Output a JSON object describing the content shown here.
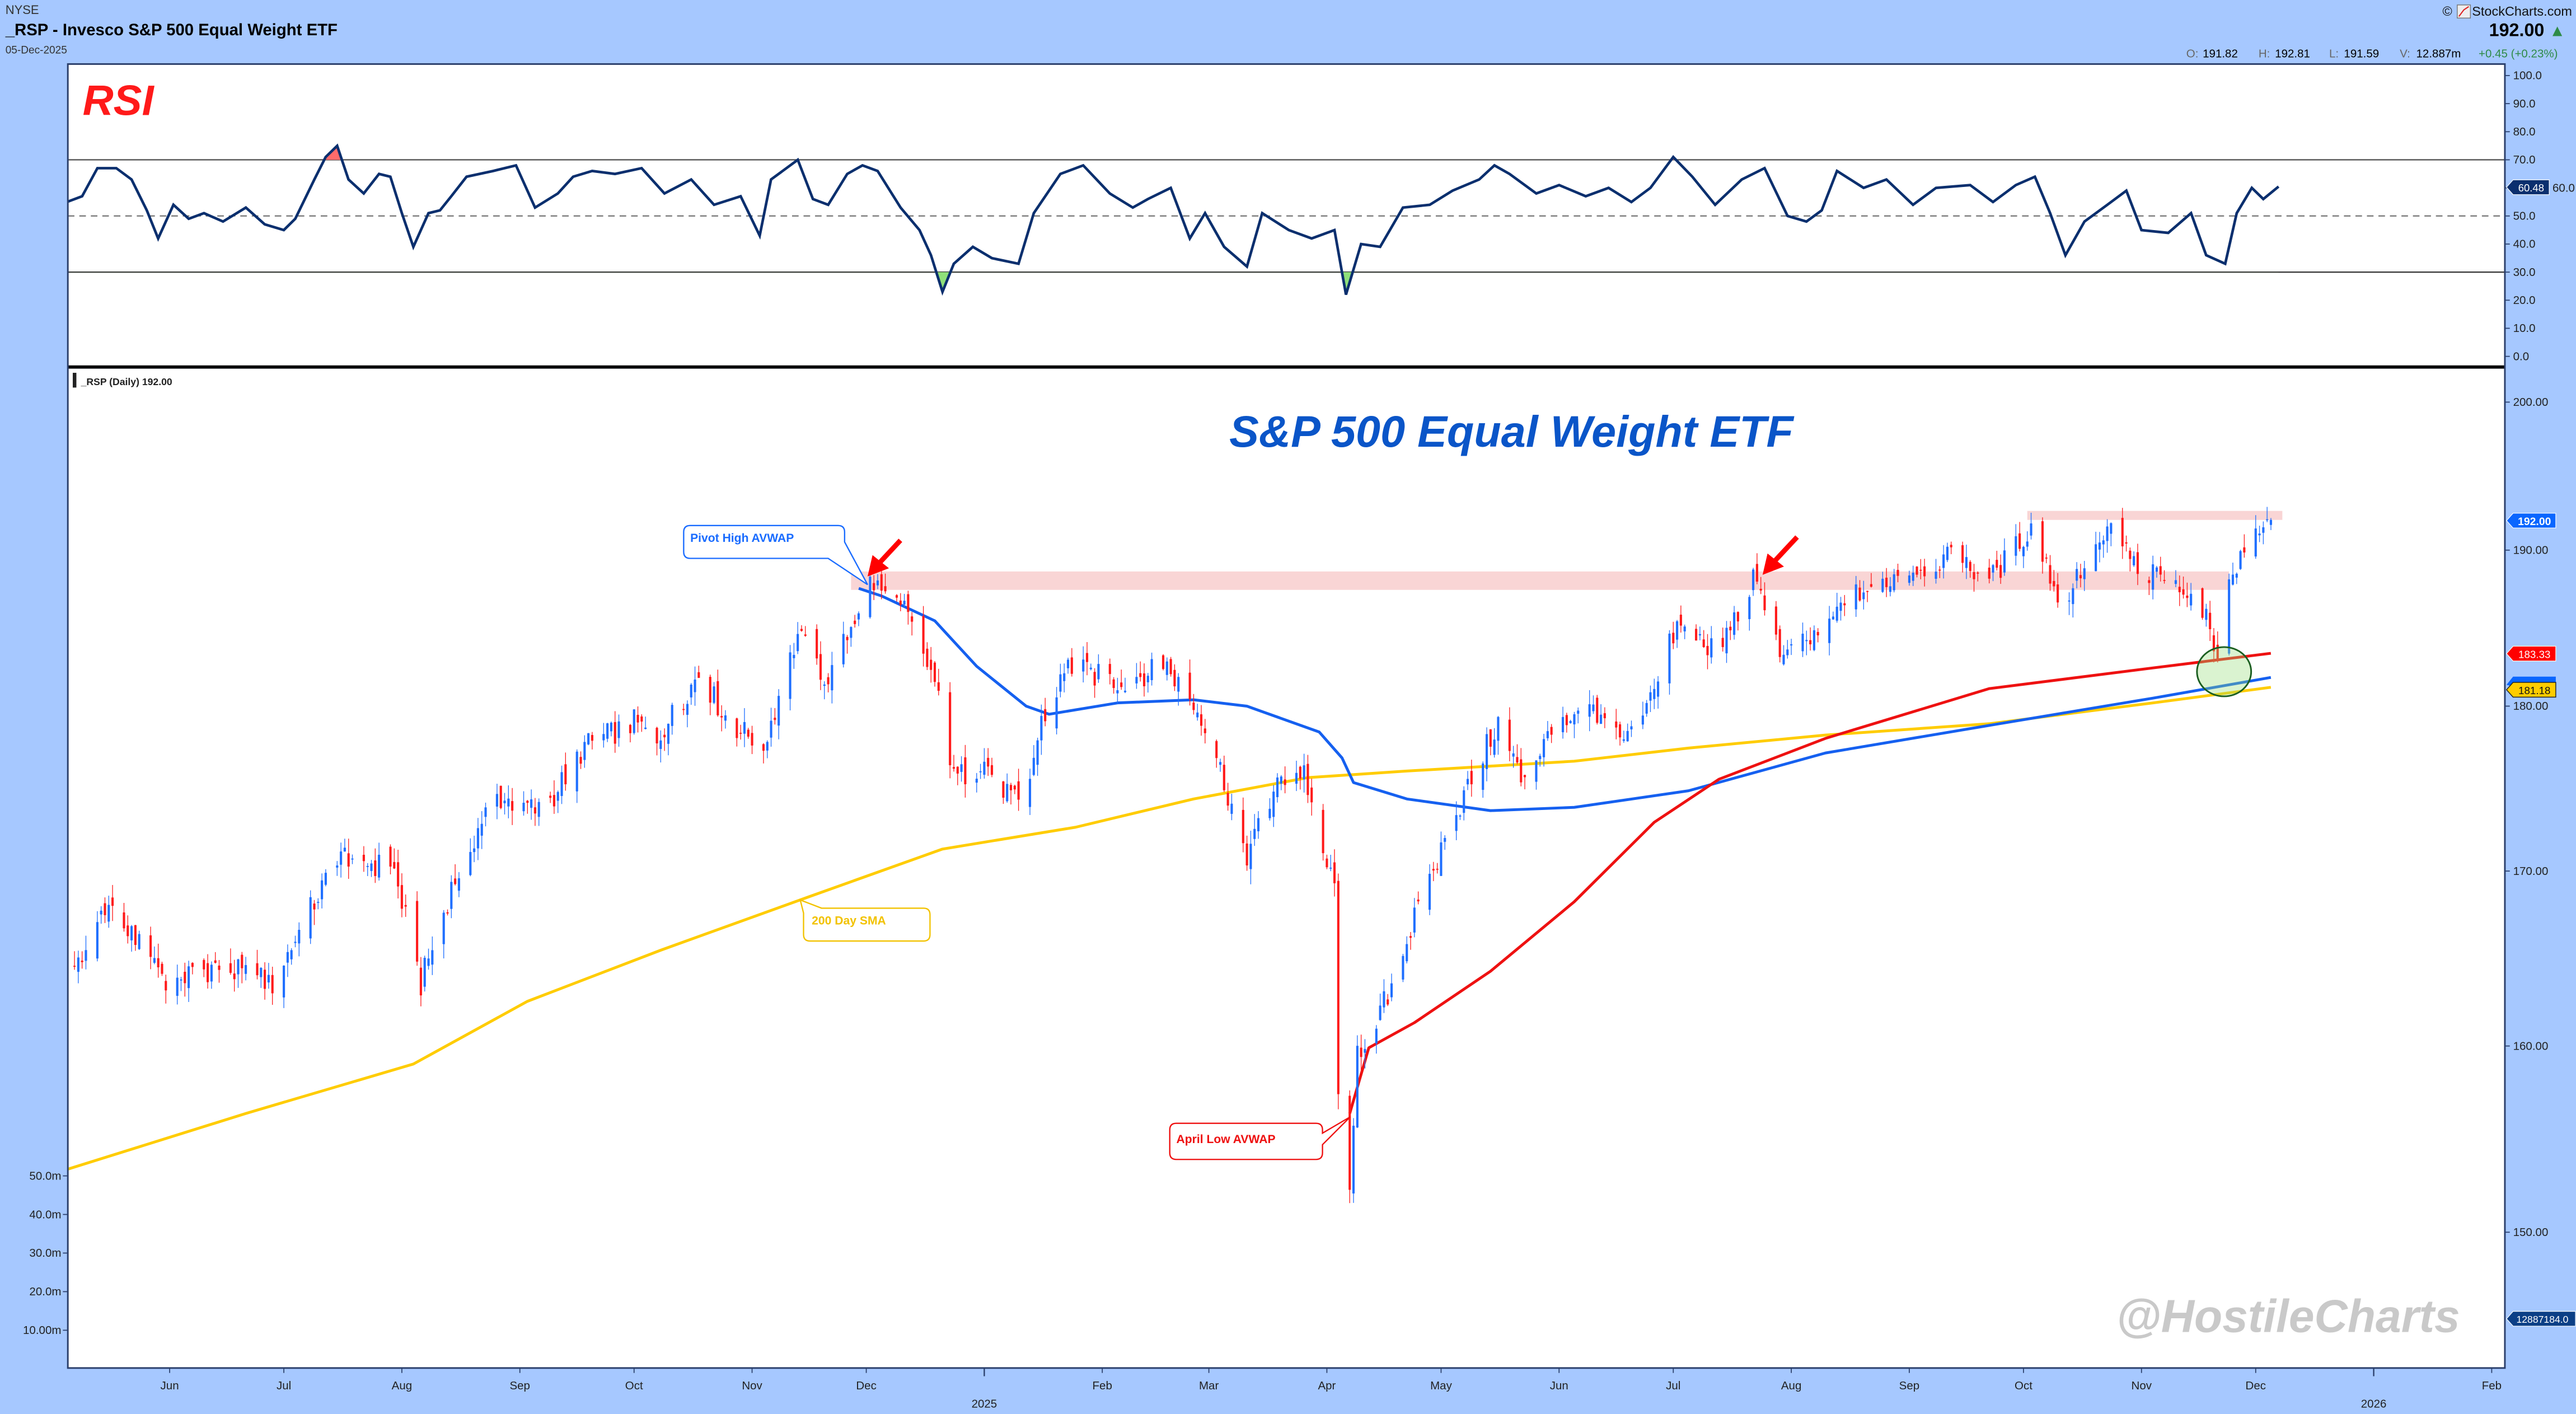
{
  "header": {
    "exchange": "NYSE",
    "title": "_RSP - Invesco S&P 500 Equal Weight ETF",
    "date": "05-Dec-2025",
    "copyright": "©",
    "brand": "StockCharts.com",
    "last_price": "192.00",
    "direction": "▲",
    "open_label": "O:",
    "open": "191.82",
    "high_label": "H:",
    "high": "192.81",
    "low_label": "L:",
    "low": "191.59",
    "volume_label": "V:",
    "volume": "12.887m",
    "change": "+0.45 (+0.23%)"
  },
  "colors": {
    "background": "#a6c8ff",
    "up_candle": "#1f6fff",
    "down_candle": "#ff1a1a",
    "sma200": "#ffcc00",
    "pivot_avwap": "#1560f0",
    "april_avwap": "#ee1111",
    "rsi_line": "#0b2f6e",
    "title": "#0a55c8"
  },
  "annotations": {
    "rsi_title": "RSI",
    "chart_title": "S&P 500 Equal Weight ETF",
    "watermark": "@HostileCharts",
    "price_legend": "_RSP (Daily) 192.00",
    "pivot_callout": "Pivot High AVWAP",
    "sma_callout": "200 Day SMA",
    "april_callout": "April Low AVWAP"
  },
  "chart_data": [
    {
      "type": "line",
      "title": "RSI",
      "ylim": [
        0,
        100
      ],
      "reference_lines": [
        30,
        50,
        70
      ],
      "y_ticks": [
        "100.0",
        "90.0",
        "80.0",
        "70.0",
        "60.0",
        "50.0",
        "40.0",
        "30.0",
        "20.0",
        "10.0",
        "0.0"
      ],
      "last_value": "60.48",
      "x_unit": "days since 2024-06-01",
      "points": [
        [
          -27,
          55
        ],
        [
          -23,
          57
        ],
        [
          -19,
          67
        ],
        [
          -14,
          67
        ],
        [
          -10,
          63
        ],
        [
          -6,
          52
        ],
        [
          -3,
          42
        ],
        [
          1,
          54
        ],
        [
          5,
          49
        ],
        [
          9,
          51
        ],
        [
          14,
          48
        ],
        [
          20,
          53
        ],
        [
          25,
          47
        ],
        [
          30,
          45
        ],
        [
          33,
          49
        ],
        [
          38,
          63
        ],
        [
          41,
          71
        ],
        [
          44,
          75
        ],
        [
          47,
          63
        ],
        [
          51,
          58
        ],
        [
          55,
          65
        ],
        [
          58,
          64
        ],
        [
          61,
          51
        ],
        [
          64,
          39
        ],
        [
          68,
          51
        ],
        [
          71,
          52
        ],
        [
          74,
          57
        ],
        [
          78,
          64
        ],
        [
          85,
          66
        ],
        [
          91,
          68
        ],
        [
          96,
          53
        ],
        [
          102,
          58
        ],
        [
          106,
          64
        ],
        [
          111,
          66
        ],
        [
          117,
          65
        ],
        [
          124,
          67
        ],
        [
          130,
          58
        ],
        [
          137,
          63
        ],
        [
          143,
          54
        ],
        [
          150,
          57
        ],
        [
          155,
          43
        ],
        [
          158,
          63
        ],
        [
          165,
          70
        ],
        [
          169,
          56
        ],
        [
          173,
          54
        ],
        [
          178,
          65
        ],
        [
          182,
          68
        ],
        [
          186,
          66
        ],
        [
          192,
          53
        ],
        [
          197,
          45
        ],
        [
          200,
          36
        ],
        [
          203,
          23
        ],
        [
          206,
          33
        ],
        [
          211,
          39
        ],
        [
          216,
          35
        ],
        [
          223,
          33
        ],
        [
          227,
          51
        ],
        [
          234,
          65
        ],
        [
          240,
          68
        ],
        [
          247,
          58
        ],
        [
          253,
          53
        ],
        [
          257,
          56
        ],
        [
          263,
          60
        ],
        [
          268,
          42
        ],
        [
          272,
          51
        ],
        [
          277,
          39
        ],
        [
          283,
          32
        ],
        [
          287,
          51
        ],
        [
          294,
          45
        ],
        [
          300,
          42
        ],
        [
          306,
          45
        ],
        [
          309,
          22
        ],
        [
          313,
          40
        ],
        [
          318,
          39
        ],
        [
          324,
          53
        ],
        [
          331,
          54
        ],
        [
          337,
          59
        ],
        [
          344,
          63
        ],
        [
          348,
          68
        ],
        [
          352,
          65
        ],
        [
          359,
          58
        ],
        [
          365,
          61
        ],
        [
          372,
          57
        ],
        [
          378,
          60
        ],
        [
          384,
          55
        ],
        [
          389,
          60
        ],
        [
          395,
          71
        ],
        [
          400,
          64
        ],
        [
          406,
          54
        ],
        [
          413,
          63
        ],
        [
          419,
          67
        ],
        [
          425,
          50
        ],
        [
          430,
          48
        ],
        [
          434,
          52
        ],
        [
          438,
          66
        ],
        [
          445,
          60
        ],
        [
          451,
          63
        ],
        [
          458,
          54
        ],
        [
          464,
          60
        ],
        [
          473,
          61
        ],
        [
          479,
          55
        ],
        [
          485,
          61
        ],
        [
          490,
          64
        ],
        [
          494,
          51
        ],
        [
          498,
          36
        ],
        [
          503,
          48
        ],
        [
          509,
          54
        ],
        [
          514,
          59
        ],
        [
          518,
          45
        ],
        [
          525,
          44
        ],
        [
          531,
          51
        ],
        [
          535,
          36
        ],
        [
          540,
          33
        ],
        [
          543,
          51
        ],
        [
          547,
          60
        ],
        [
          550,
          56
        ],
        [
          554,
          60.48
        ]
      ]
    },
    {
      "type": "candlestick",
      "title": "_RSP (Daily)",
      "yscale": "log",
      "ylim": [
        147,
        202
      ],
      "y_ticks": [
        "200.00",
        "190.00",
        "180.00",
        "170.00",
        "160.00",
        "150.00"
      ],
      "volume_ticks": [
        "50.0m",
        "40.0m",
        "30.0m",
        "20.0m",
        "10.00m"
      ],
      "last_volume": "12887184.0",
      "x_ticks": [
        {
          "label": "Jun",
          "date": "2024-06-01"
        },
        {
          "label": "Jul",
          "date": "2024-07-01"
        },
        {
          "label": "Aug",
          "date": "2024-08-01"
        },
        {
          "label": "Sep",
          "date": "2024-09-01"
        },
        {
          "label": "Oct",
          "date": "2024-10-01"
        },
        {
          "label": "Nov",
          "date": "2024-11-01"
        },
        {
          "label": "Dec",
          "date": "2024-12-01"
        },
        {
          "label": "Feb",
          "date": "2025-02-01"
        },
        {
          "label": "Mar",
          "date": "2025-03-01"
        },
        {
          "label": "Apr",
          "date": "2025-04-01"
        },
        {
          "label": "May",
          "date": "2025-05-01"
        },
        {
          "label": "Jun",
          "date": "2025-06-01"
        },
        {
          "label": "Jul",
          "date": "2025-07-01"
        },
        {
          "label": "Aug",
          "date": "2025-08-01"
        },
        {
          "label": "Sep",
          "date": "2025-09-01"
        },
        {
          "label": "Oct",
          "date": "2025-10-01"
        },
        {
          "label": "Nov",
          "date": "2025-11-01"
        },
        {
          "label": "Dec",
          "date": "2025-12-01"
        },
        {
          "label": "Feb",
          "date": "2026-02-01"
        }
      ],
      "year_ticks": [
        {
          "label": "2025",
          "date": "2025-01-01"
        },
        {
          "label": "2026",
          "date": "2026-01-01"
        }
      ],
      "close_keypoints": [
        [
          "2024-05-07",
          164.5
        ],
        [
          "2024-05-17",
          168
        ],
        [
          "2024-05-31",
          163.5
        ],
        [
          "2024-06-13",
          164.5
        ],
        [
          "2024-06-28",
          163.5
        ],
        [
          "2024-07-11",
          169
        ],
        [
          "2024-07-17",
          171
        ],
        [
          "2024-07-30",
          170
        ],
        [
          "2024-08-06",
          163.5
        ],
        [
          "2024-08-14",
          169
        ],
        [
          "2024-08-25",
          174.5
        ],
        [
          "2024-09-07",
          173.5
        ],
        [
          "2024-09-18",
          177.5
        ],
        [
          "2024-10-01",
          179
        ],
        [
          "2024-10-07",
          178
        ],
        [
          "2024-10-18",
          182
        ],
        [
          "2024-10-26",
          179
        ],
        [
          "2024-11-04",
          177.5
        ],
        [
          "2024-11-13",
          184.5
        ],
        [
          "2024-11-21",
          181.5
        ],
        [
          "2024-12-02",
          188
        ],
        [
          "2024-12-11",
          186
        ],
        [
          "2024-12-19",
          181.5
        ],
        [
          "2024-12-24",
          175.5
        ],
        [
          "2025-01-01",
          176.5
        ],
        [
          "2025-01-11",
          173.5
        ],
        [
          "2025-01-16",
          179
        ],
        [
          "2025-01-23",
          182.5
        ],
        [
          "2025-02-05",
          181.5
        ],
        [
          "2025-02-18",
          182.5
        ],
        [
          "2025-02-28",
          179
        ],
        [
          "2025-03-11",
          171
        ],
        [
          "2025-03-20",
          175.5
        ],
        [
          "2025-03-26",
          176
        ],
        [
          "2025-03-31",
          171
        ],
        [
          "2025-04-03",
          169
        ],
        [
          "2025-04-04",
          158
        ],
        [
          "2025-04-07",
          152
        ],
        [
          "2025-04-09",
          160.5
        ],
        [
          "2025-04-11",
          159.5
        ],
        [
          "2025-04-18",
          163.5
        ],
        [
          "2025-04-27",
          169
        ],
        [
          "2025-05-07",
          174.5
        ],
        [
          "2025-05-16",
          179
        ],
        [
          "2025-05-22",
          175.5
        ],
        [
          "2025-05-29",
          178
        ],
        [
          "2025-06-09",
          179.5
        ],
        [
          "2025-06-19",
          178
        ],
        [
          "2025-06-26",
          181.5
        ],
        [
          "2025-07-02",
          185
        ],
        [
          "2025-07-13",
          183.5
        ],
        [
          "2025-07-22",
          188
        ],
        [
          "2025-07-30",
          183
        ],
        [
          "2025-08-08",
          184.5
        ],
        [
          "2025-08-17",
          187
        ],
        [
          "2025-08-30",
          188.5
        ],
        [
          "2025-09-12",
          189.5
        ],
        [
          "2025-09-22",
          188
        ],
        [
          "2025-10-03",
          191.5
        ],
        [
          "2025-10-11",
          186.5
        ],
        [
          "2025-10-18",
          189.5
        ],
        [
          "2025-10-25",
          191.5
        ],
        [
          "2025-10-31",
          188.5
        ],
        [
          "2025-11-11",
          188
        ],
        [
          "2025-11-19",
          185
        ],
        [
          "2025-11-21",
          183.5
        ],
        [
          "2025-11-24",
          188.5
        ],
        [
          "2025-12-05",
          192
        ]
      ],
      "overlays": [
        {
          "name": "200 Day SMA",
          "last": "181.18",
          "points": [
            [
              "2024-05-05",
              153.3
            ],
            [
              "2024-06-21",
              156.3
            ],
            [
              "2024-08-04",
              159
            ],
            [
              "2024-09-03",
              162.5
            ],
            [
              "2024-10-08",
              165.4
            ],
            [
              "2024-11-16",
              168.5
            ],
            [
              "2024-12-21",
              171.3
            ],
            [
              "2025-01-25",
              172.6
            ],
            [
              "2025-02-25",
              174.3
            ],
            [
              "2025-03-27",
              175.6
            ],
            [
              "2025-04-22",
              176
            ],
            [
              "2025-05-14",
              176.3
            ],
            [
              "2025-06-05",
              176.6
            ],
            [
              "2025-07-05",
              177.4
            ],
            [
              "2025-08-10",
              178.2
            ],
            [
              "2025-09-22",
              178.9
            ],
            [
              "2025-11-04",
              180.2
            ],
            [
              "2025-12-05",
              181.18
            ]
          ]
        },
        {
          "name": "Pivot High AVWAP",
          "points": [
            [
              "2024-11-29",
              187.5
            ],
            [
              "2024-12-05",
              187
            ],
            [
              "2024-12-19",
              185.4
            ],
            [
              "2024-12-30",
              182.5
            ],
            [
              "2025-01-12",
              180
            ],
            [
              "2025-01-18",
              179.5
            ],
            [
              "2025-02-05",
              180.2
            ],
            [
              "2025-02-25",
              180.4
            ],
            [
              "2025-03-11",
              180
            ],
            [
              "2025-03-30",
              178.4
            ],
            [
              "2025-04-05",
              176.8
            ],
            [
              "2025-04-08",
              175.3
            ],
            [
              "2025-04-22",
              174.3
            ],
            [
              "2025-05-14",
              173.6
            ],
            [
              "2025-06-05",
              173.8
            ],
            [
              "2025-07-05",
              174.8
            ],
            [
              "2025-08-10",
              177.1
            ],
            [
              "2025-09-22",
              178.8
            ],
            [
              "2025-11-04",
              180.5
            ],
            [
              "2025-12-05",
              181.8
            ]
          ]
        },
        {
          "name": "April Low AVWAP",
          "last": "183.33",
          "points": [
            [
              "2025-04-07",
              156.3
            ],
            [
              "2025-04-12",
              159.9
            ],
            [
              "2025-04-24",
              161.3
            ],
            [
              "2025-05-14",
              164.2
            ],
            [
              "2025-06-05",
              168.2
            ],
            [
              "2025-06-26",
              172.9
            ],
            [
              "2025-07-13",
              175.5
            ],
            [
              "2025-08-10",
              178
            ],
            [
              "2025-09-22",
              181.1
            ],
            [
              "2025-11-04",
              182.4
            ],
            [
              "2025-12-05",
              183.33
            ]
          ]
        }
      ],
      "resistance_zones": [
        {
          "from": "2024-11-27",
          "to": "2025-11-24",
          "low": 187.4,
          "high": 188.6
        },
        {
          "from": "2025-10-02",
          "to": "2025-12-08",
          "low": 192.0,
          "high": 192.6
        }
      ]
    }
  ]
}
